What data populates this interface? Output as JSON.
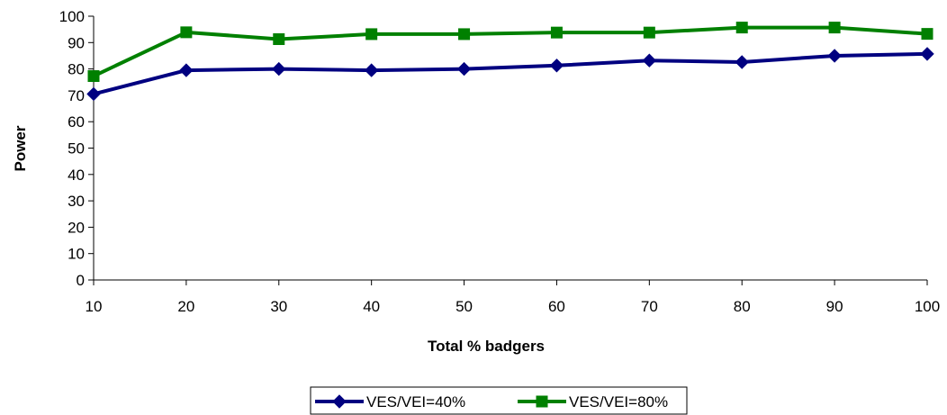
{
  "chart_data": {
    "type": "line",
    "title": "",
    "xlabel": "Total % badgers",
    "ylabel": "Power",
    "x": [
      10,
      20,
      30,
      40,
      50,
      60,
      70,
      80,
      90,
      100
    ],
    "xticks": [
      "10",
      "20",
      "30",
      "40",
      "50",
      "60",
      "70",
      "80",
      "90",
      "100"
    ],
    "ylim": [
      0,
      100
    ],
    "yticks": [
      "0",
      "10",
      "20",
      "30",
      "40",
      "50",
      "60",
      "70",
      "80",
      "90",
      "100"
    ],
    "grid": false,
    "legend_position": "bottom",
    "series": [
      {
        "name": "VES/VEI=40%",
        "color": "#000080",
        "marker": "diamond",
        "values": [
          70.5,
          79.5,
          80,
          79.5,
          80,
          81.3,
          83.2,
          82.6,
          85,
          85.7
        ]
      },
      {
        "name": "VES/VEI=80%",
        "color": "#008000",
        "marker": "square",
        "values": [
          77.3,
          93.9,
          91.3,
          93.2,
          93.2,
          93.8,
          93.8,
          95.7,
          95.7,
          93.3
        ]
      }
    ]
  }
}
